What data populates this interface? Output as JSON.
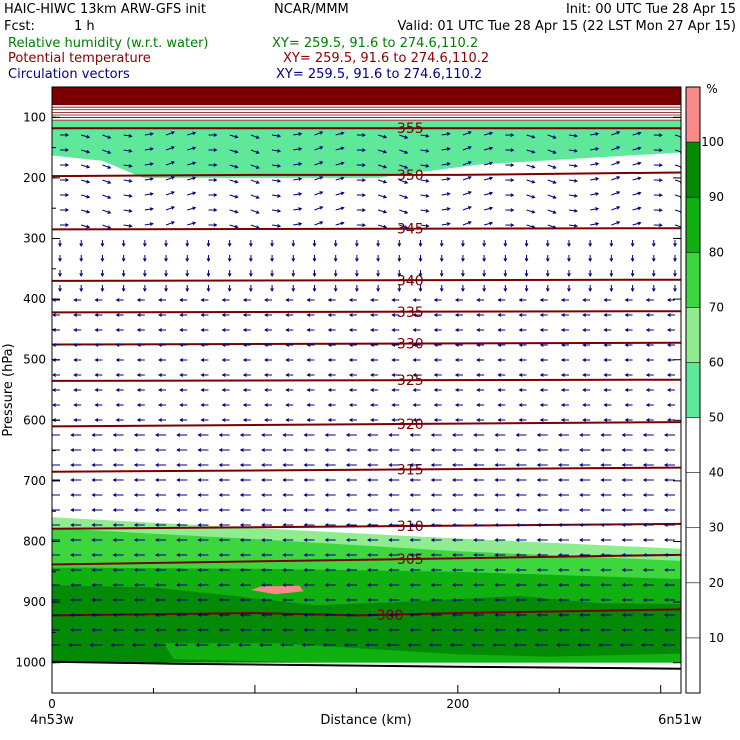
{
  "header": {
    "title": "HAIC-HIWC 13km ARW-GFS init",
    "org": "NCAR/MMM",
    "init": "Init: 00 UTC Tue 28 Apr 15",
    "fcst_label": "Fcst:",
    "fcst_value": "1 h",
    "valid": "Valid: 01 UTC Tue 28 Apr 15 (22 LST Mon 27 Apr 15)",
    "fields": [
      {
        "name": "Relative humidity (w.r.t. water)",
        "xy": "XY= 259.5, 91.6 to 274.6,110.2",
        "color": "#008000"
      },
      {
        "name": "Potential temperature",
        "xy": "XY= 259.5, 91.6 to 274.6,110.2",
        "color": "#8b0000"
      },
      {
        "name": "Circulation vectors",
        "xy": "XY= 259.5, 91.6 to 274.6,110.2",
        "color": "#00008b"
      }
    ]
  },
  "chart_data": {
    "type": "heatmap",
    "ylabel": "Pressure (hPa)",
    "xlabel": "Distance (km)",
    "x_start_label": "4n53w",
    "x_end_label": "6n51w",
    "xlim": [
      0,
      310
    ],
    "ylim": [
      1050,
      50
    ],
    "x_ticks": [
      0,
      200
    ],
    "y_ticks": [
      100,
      200,
      300,
      400,
      500,
      600,
      700,
      800,
      900,
      1000
    ],
    "colorbar": {
      "unit": "%",
      "labels": [
        10,
        20,
        30,
        40,
        50,
        60,
        70,
        80,
        90,
        100
      ],
      "levels": [
        {
          "from": 50,
          "to": 60,
          "color": "#5fe89a"
        },
        {
          "from": 60,
          "to": 70,
          "color": "#8fec8f"
        },
        {
          "from": 70,
          "to": 80,
          "color": "#3ed63e"
        },
        {
          "from": 80,
          "to": 90,
          "color": "#10b010"
        },
        {
          "from": 90,
          "to": 100,
          "color": "#048a04"
        },
        {
          "from": 100,
          "to": 110,
          "color": "#f88a8a"
        }
      ]
    },
    "rh_regions": [
      {
        "color": "#5fe89a",
        "poly": [
          [
            0,
            106
          ],
          [
            310,
            106
          ],
          [
            310,
            158
          ],
          [
            210,
            178
          ],
          [
            160,
            200
          ],
          [
            45,
            200
          ],
          [
            25,
            172
          ],
          [
            0,
            163
          ]
        ]
      },
      {
        "color": "#8fec8f",
        "poly": [
          [
            0,
            760
          ],
          [
            100,
            778
          ],
          [
            200,
            795
          ],
          [
            310,
            812
          ],
          [
            310,
            1015
          ],
          [
            0,
            1000
          ]
        ]
      },
      {
        "color": "#3ed63e",
        "poly": [
          [
            0,
            778
          ],
          [
            100,
            796
          ],
          [
            200,
            816
          ],
          [
            310,
            832
          ],
          [
            310,
            1015
          ],
          [
            0,
            1000
          ]
        ]
      },
      {
        "color": "#10b010",
        "poly": [
          [
            0,
            843
          ],
          [
            100,
            845
          ],
          [
            200,
            850
          ],
          [
            310,
            862
          ],
          [
            310,
            1015
          ],
          [
            0,
            1000
          ]
        ]
      },
      {
        "color": "#048a04",
        "poly": [
          [
            0,
            872
          ],
          [
            50,
            876
          ],
          [
            90,
            890
          ],
          [
            130,
            905
          ],
          [
            170,
            900
          ],
          [
            230,
            890
          ],
          [
            270,
            902
          ],
          [
            310,
            903
          ],
          [
            310,
            1012
          ],
          [
            0,
            1000
          ]
        ]
      },
      {
        "color": "#10b010",
        "poly": [
          [
            55,
            968
          ],
          [
            110,
            968
          ],
          [
            150,
            976
          ],
          [
            200,
            986
          ],
          [
            245,
            990
          ],
          [
            310,
            985
          ],
          [
            310,
            1012
          ],
          [
            160,
            1002
          ],
          [
            60,
            994
          ]
        ]
      },
      {
        "color": "#f88a8a",
        "poly": [
          [
            98,
            880
          ],
          [
            103,
            874
          ],
          [
            122,
            873
          ],
          [
            124,
            882
          ],
          [
            110,
            887
          ]
        ]
      }
    ],
    "theta_contours": [
      {
        "label": "355",
        "label_x": 170,
        "pts": [
          [
            0,
            118
          ],
          [
            310,
            118
          ]
        ]
      },
      {
        "label": "350",
        "label_x": 170,
        "pts": [
          [
            0,
            197
          ],
          [
            100,
            195
          ],
          [
            200,
            195
          ],
          [
            310,
            191
          ]
        ]
      },
      {
        "label": "345",
        "label_x": 170,
        "pts": [
          [
            0,
            285
          ],
          [
            310,
            283
          ]
        ]
      },
      {
        "label": "340",
        "label_x": 170,
        "pts": [
          [
            0,
            370
          ],
          [
            310,
            368
          ]
        ]
      },
      {
        "label": "335",
        "label_x": 170,
        "pts": [
          [
            0,
            422
          ],
          [
            310,
            420
          ]
        ]
      },
      {
        "label": "330",
        "label_x": 170,
        "pts": [
          [
            0,
            475
          ],
          [
            310,
            472
          ]
        ]
      },
      {
        "label": "325",
        "label_x": 170,
        "pts": [
          [
            0,
            535
          ],
          [
            310,
            533
          ]
        ]
      },
      {
        "label": "320",
        "label_x": 170,
        "pts": [
          [
            0,
            610
          ],
          [
            310,
            603
          ]
        ]
      },
      {
        "label": "315",
        "label_x": 170,
        "pts": [
          [
            0,
            685
          ],
          [
            310,
            678
          ]
        ]
      },
      {
        "label": "310",
        "label_x": 170,
        "pts": [
          [
            0,
            779
          ],
          [
            310,
            771
          ]
        ]
      },
      {
        "label": "305",
        "label_x": 170,
        "pts": [
          [
            0,
            838
          ],
          [
            310,
            822
          ]
        ]
      },
      {
        "label": "300",
        "label_x": 160,
        "pts": [
          [
            0,
            922
          ],
          [
            100,
            918
          ],
          [
            150,
            922
          ],
          [
            200,
            918
          ],
          [
            310,
            912
          ]
        ]
      }
    ],
    "terrain_pressure": 1000,
    "model_top_pressure": 80
  }
}
